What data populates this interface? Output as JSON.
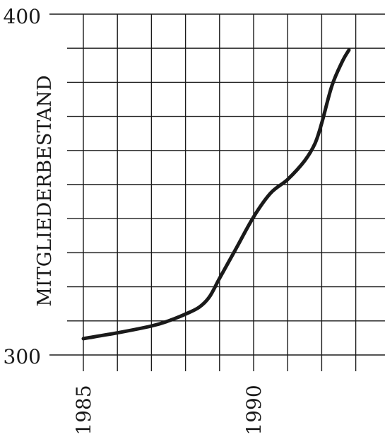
{
  "chart_data": {
    "type": "line",
    "title": "",
    "xlabel": "",
    "ylabel": "MITGLIEDERBESTAND",
    "x_ticks": [
      1985,
      1990
    ],
    "y_ticks": [
      300,
      400
    ],
    "xlim": [
      1985,
      1993.5
    ],
    "ylim": [
      300,
      400
    ],
    "grid": true,
    "series": [
      {
        "x": [
          1985,
          1986,
          1987,
          1987.5,
          1988,
          1988.4,
          1988.7,
          1989,
          1989.5,
          1990,
          1990.5,
          1991,
          1991.5,
          1991.8,
          1992,
          1992.3,
          1992.6,
          1992.8
        ],
        "y": [
          304.8,
          306.5,
          308.5,
          310,
          312,
          314,
          317,
          322.5,
          331.5,
          340.5,
          347.5,
          351.5,
          357,
          362,
          368,
          379,
          386,
          389.5
        ]
      }
    ]
  }
}
